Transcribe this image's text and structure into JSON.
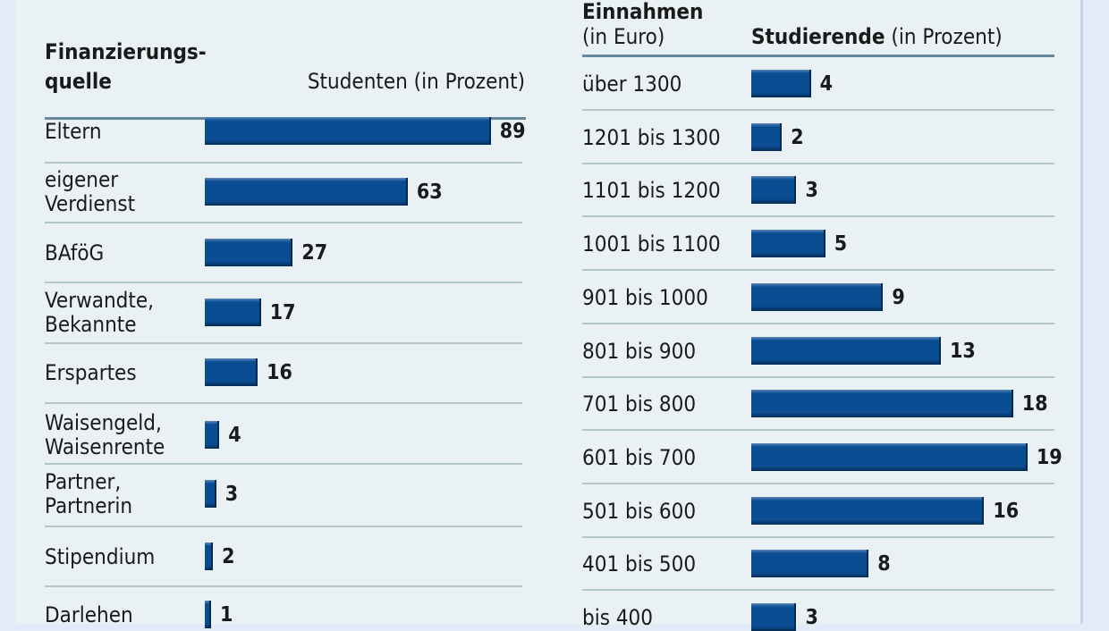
{
  "chart_data": [
    {
      "type": "bar",
      "orientation": "horizontal",
      "header_category": [
        "Finanzierungs-",
        "quelle"
      ],
      "header_value": "Studenten (in Prozent)",
      "categories": [
        [
          "Eltern"
        ],
        [
          "eigener",
          "Verdienst"
        ],
        [
          "BAföG"
        ],
        [
          "Verwandte,",
          "Bekannte"
        ],
        [
          "Erspartes"
        ],
        [
          "Waisengeld,",
          "Waisenrente"
        ],
        [
          "Partner,",
          "Partnerin"
        ],
        [
          "Stipendium"
        ],
        [
          "Darlehen"
        ]
      ],
      "values": [
        89,
        63,
        27,
        17,
        16,
        4,
        3,
        2,
        1
      ],
      "unit": "Prozent",
      "bar_color": "#0a4d93"
    },
    {
      "type": "bar",
      "orientation": "horizontal",
      "header_category": [
        "Einnahmen",
        "(in Euro)"
      ],
      "header_value_bold": "Studierende",
      "header_value": " (in Prozent)",
      "categories": [
        "über 1300",
        "1201 bis 1300",
        "1101 bis 1200",
        "1001 bis 1100",
        "901 bis 1000",
        "801 bis 900",
        "701 bis 800",
        "601 bis 700",
        "501 bis 600",
        "401 bis 500",
        "bis 400"
      ],
      "values": [
        4,
        2,
        3,
        5,
        9,
        13,
        18,
        19,
        16,
        8,
        3
      ],
      "unit": "Prozent",
      "bar_color": "#0a4d93"
    }
  ]
}
